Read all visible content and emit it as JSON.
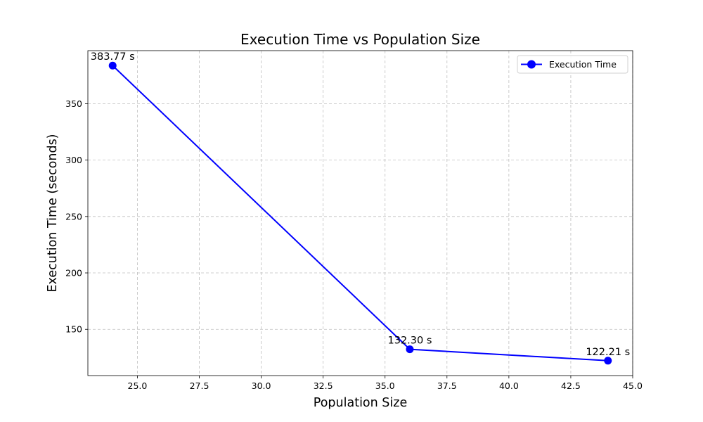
{
  "chart_data": {
    "type": "line",
    "title": "Execution Time vs Population Size",
    "xlabel": "Population Size",
    "ylabel": "Execution Time (seconds)",
    "xlim": [
      23.0,
      45.0
    ],
    "ylim": [
      109.0,
      397.0
    ],
    "xticks": [
      25.0,
      27.5,
      30.0,
      32.5,
      35.0,
      37.5,
      40.0,
      42.5,
      45.0
    ],
    "xtick_labels": [
      "25.0",
      "27.5",
      "30.0",
      "32.5",
      "35.0",
      "37.5",
      "40.0",
      "42.5",
      "45.0"
    ],
    "yticks": [
      150,
      200,
      250,
      300,
      350
    ],
    "ytick_labels": [
      "150",
      "200",
      "250",
      "300",
      "350"
    ],
    "grid": true,
    "legend_position": "top-right",
    "series": [
      {
        "name": "Execution Time",
        "color": "#0000ff",
        "marker": "circle",
        "x": [
          24,
          36,
          44
        ],
        "y": [
          383.77,
          132.3,
          122.21
        ],
        "labels": [
          "383.77 s",
          "132.30 s",
          "122.21 s"
        ]
      }
    ]
  }
}
